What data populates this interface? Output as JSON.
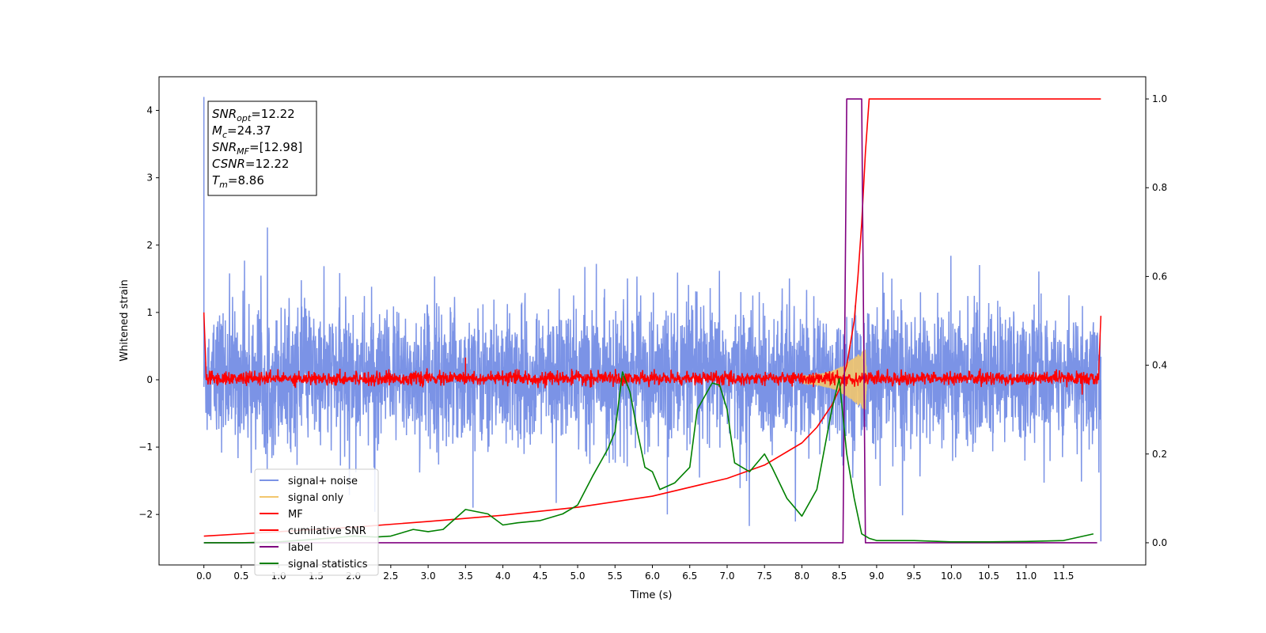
{
  "chart_data": {
    "type": "line",
    "title": "",
    "xlabel": "Time (s)",
    "ylabel": "Whitened strain",
    "y2label": "",
    "xlim": [
      -0.6,
      12.6
    ],
    "ylim": [
      -2.75,
      4.5
    ],
    "y2lim": [
      -0.05,
      1.05
    ],
    "x_ticks": [
      "0.0",
      "0.5",
      "1.0",
      "1.5",
      "2.0",
      "2.5",
      "3.0",
      "3.5",
      "4.0",
      "4.5",
      "5.0",
      "5.5",
      "6.0",
      "6.5",
      "7.0",
      "7.5",
      "8.0",
      "8.5",
      "9.0",
      "9.5",
      "10.0",
      "10.5",
      "11.0",
      "11.5"
    ],
    "y_ticks": [
      "−2",
      "−1",
      "0",
      "1",
      "2",
      "3",
      "4"
    ],
    "y2_ticks": [
      "0.0",
      "0.2",
      "0.4",
      "0.6",
      "0.8",
      "1.0"
    ],
    "grid": false,
    "legend_position": "lower-left",
    "colors": {
      "signal_noise": "#7b93e6",
      "signal_only": "#f2c66d",
      "mf": "#ff0000",
      "cumulative_snr": "#ff0000",
      "label": "#800080",
      "signal_statistics": "#008000"
    },
    "series": [
      {
        "name": "signal+ noise",
        "axis": "left",
        "style": "dense-noise",
        "x_range": [
          0.0,
          12.0
        ],
        "envelope_typical": [
          -1.2,
          1.4
        ],
        "extremes": [
          [
            0.0,
            4.2
          ],
          [
            12.0,
            -2.4
          ],
          [
            6.2,
            -2.0
          ],
          [
            3.6,
            -1.9
          ]
        ]
      },
      {
        "name": "signal only",
        "axis": "left",
        "style": "chirp",
        "x": [
          8.0,
          8.2,
          8.4,
          8.5,
          8.6,
          8.7,
          8.8,
          8.85,
          8.87
        ],
        "amplitude": [
          0.05,
          0.08,
          0.13,
          0.18,
          0.25,
          0.33,
          0.42,
          0.45,
          0.0
        ]
      },
      {
        "name": "MF",
        "axis": "left",
        "style": "noise",
        "x_range": [
          0.0,
          12.0
        ],
        "envelope_typical": [
          -0.1,
          0.15
        ],
        "extremes": [
          [
            0.0,
            1.0
          ],
          [
            3.5,
            0.33
          ],
          [
            12.0,
            0.95
          ]
        ]
      },
      {
        "name": "cumilative SNR",
        "axis": "right",
        "x": [
          0.0,
          0.5,
          1.0,
          2.0,
          3.0,
          4.0,
          5.0,
          6.0,
          7.0,
          7.5,
          8.0,
          8.2,
          8.4,
          8.5,
          8.6,
          8.7,
          8.75,
          8.8,
          8.85,
          8.9,
          12.0
        ],
        "y": [
          0.015,
          0.02,
          0.025,
          0.035,
          0.048,
          0.062,
          0.08,
          0.105,
          0.145,
          0.175,
          0.225,
          0.26,
          0.31,
          0.345,
          0.4,
          0.5,
          0.6,
          0.72,
          0.88,
          1.0,
          1.0
        ]
      },
      {
        "name": "label",
        "axis": "right",
        "x": [
          0.0,
          8.55,
          8.6,
          8.8,
          8.85,
          11.95
        ],
        "y": [
          0.0,
          0.0,
          1.0,
          1.0,
          0.0,
          0.0
        ]
      },
      {
        "name": "signal statistics",
        "axis": "right",
        "x": [
          0.0,
          0.5,
          1.0,
          1.5,
          2.0,
          2.3,
          2.5,
          2.8,
          3.0,
          3.2,
          3.5,
          3.8,
          4.0,
          4.2,
          4.5,
          4.8,
          5.0,
          5.2,
          5.4,
          5.5,
          5.6,
          5.7,
          5.8,
          5.9,
          6.0,
          6.1,
          6.3,
          6.5,
          6.6,
          6.8,
          6.9,
          7.0,
          7.1,
          7.3,
          7.5,
          7.6,
          7.8,
          8.0,
          8.2,
          8.4,
          8.5,
          8.6,
          8.7,
          8.8,
          8.9,
          9.0,
          9.2,
          9.5,
          10.0,
          10.5,
          11.0,
          11.5,
          11.9
        ],
        "y": [
          0.0,
          0.0,
          0.002,
          0.008,
          0.015,
          0.013,
          0.015,
          0.03,
          0.025,
          0.03,
          0.075,
          0.065,
          0.04,
          0.045,
          0.05,
          0.065,
          0.085,
          0.15,
          0.21,
          0.25,
          0.385,
          0.34,
          0.25,
          0.17,
          0.16,
          0.12,
          0.135,
          0.17,
          0.3,
          0.36,
          0.355,
          0.3,
          0.18,
          0.16,
          0.2,
          0.17,
          0.1,
          0.06,
          0.12,
          0.3,
          0.37,
          0.2,
          0.1,
          0.02,
          0.01,
          0.005,
          0.005,
          0.005,
          0.002,
          0.002,
          0.003,
          0.005,
          0.02
        ]
      }
    ],
    "legend": [
      {
        "label": "signal+ noise",
        "color": "#7b93e6"
      },
      {
        "label": "signal only",
        "color": "#f2c66d"
      },
      {
        "label": "MF",
        "color": "#ff0000"
      },
      {
        "label": "cumilative SNR",
        "color": "#ff0000"
      },
      {
        "label": "label",
        "color": "#800080"
      },
      {
        "label": "signal statistics",
        "color": "#008000"
      }
    ],
    "annotation": {
      "lines": [
        {
          "sym": "SNR",
          "sub": "opt",
          "rest": "=12.22"
        },
        {
          "sym": "M",
          "sub": "c",
          "rest": "=24.37"
        },
        {
          "sym": "SNR",
          "sub": "MF",
          "rest": "=[12.98]"
        },
        {
          "sym": "CSNR",
          "sub": "",
          "rest": "=12.22"
        },
        {
          "sym": "T",
          "sub": "m",
          "rest": "=8.86"
        }
      ]
    }
  }
}
